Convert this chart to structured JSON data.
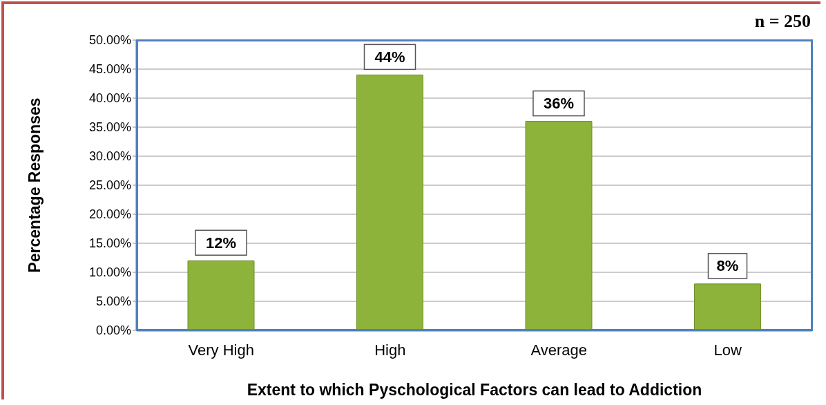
{
  "chart_data": {
    "type": "bar",
    "xlabel": "Extent to which Pyschological Factors can lead to Addiction",
    "ylabel": "Percentage Responses",
    "categories": [
      "Very High",
      "High",
      "Average",
      "Low"
    ],
    "values": [
      12,
      44,
      36,
      8
    ],
    "value_labels": [
      "12%",
      "44%",
      "36%",
      "8%"
    ],
    "color": "#8db33a",
    "ylim": [
      0,
      50
    ],
    "yticks": [
      {
        "value": 0,
        "label": "0.00%"
      },
      {
        "value": 5,
        "label": "5.00%"
      },
      {
        "value": 10,
        "label": "10.00%"
      },
      {
        "value": 15,
        "label": "15.00%"
      },
      {
        "value": 20,
        "label": "20.00%"
      },
      {
        "value": 25,
        "label": "25.00%"
      },
      {
        "value": 30,
        "label": "30.00%"
      },
      {
        "value": 35,
        "label": "35.00%"
      },
      {
        "value": 40,
        "label": "40.00%"
      },
      {
        "value": 45,
        "label": "45.00%"
      },
      {
        "value": 50,
        "label": "50.00%"
      }
    ],
    "grid": "y",
    "annotations": [
      "n = 250"
    ]
  }
}
